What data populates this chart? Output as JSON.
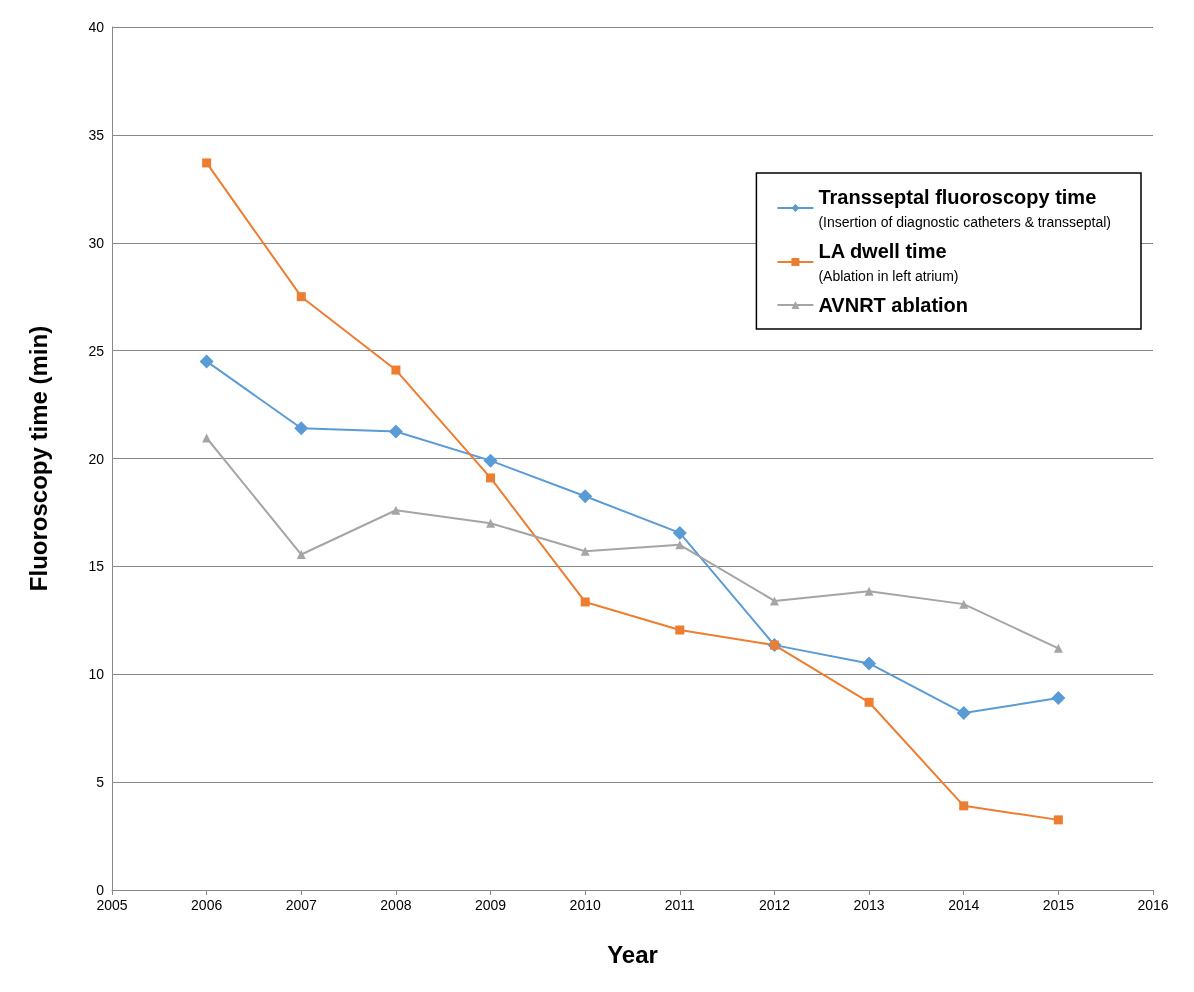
{
  "chart_data": {
    "type": "line",
    "xlabel": "Year",
    "ylabel": "Fluoroscopy time (min)",
    "x": [
      2006,
      2007,
      2008,
      2009,
      2010,
      2011,
      2012,
      2013,
      2014,
      2015
    ],
    "series": [
      {
        "name": "Transseptal fluoroscopy time",
        "color": "#5b9bd5",
        "marker": "diamond",
        "values": [
          24.5,
          21.4,
          21.25,
          19.9,
          18.25,
          16.55,
          11.35,
          10.5,
          8.2,
          8.9
        ]
      },
      {
        "name": "LA dwell time",
        "color": "#ed7d31",
        "marker": "square",
        "values": [
          33.7,
          27.5,
          24.1,
          19.1,
          13.35,
          12.05,
          11.35,
          8.7,
          3.9,
          3.25
        ]
      },
      {
        "name": "AVNRT ablation",
        "color": "#a5a5a5",
        "marker": "triangle",
        "values": [
          20.95,
          15.55,
          17.6,
          17.0,
          15.7,
          16.0,
          13.4,
          13.85,
          13.25,
          11.2
        ]
      }
    ],
    "annotations": [
      "(Insertion of diagnostic catheters & transseptal)",
      "(Ablation in left atrium)"
    ],
    "xlim": [
      2005,
      2016
    ],
    "xticks": [
      2005,
      2006,
      2007,
      2008,
      2009,
      2010,
      2011,
      2012,
      2013,
      2014,
      2015,
      2016
    ],
    "ylim": [
      0,
      40
    ],
    "yticks": [
      0,
      5,
      10,
      15,
      20,
      25,
      30,
      35,
      40
    ],
    "grid": "y",
    "legend": "top right"
  }
}
